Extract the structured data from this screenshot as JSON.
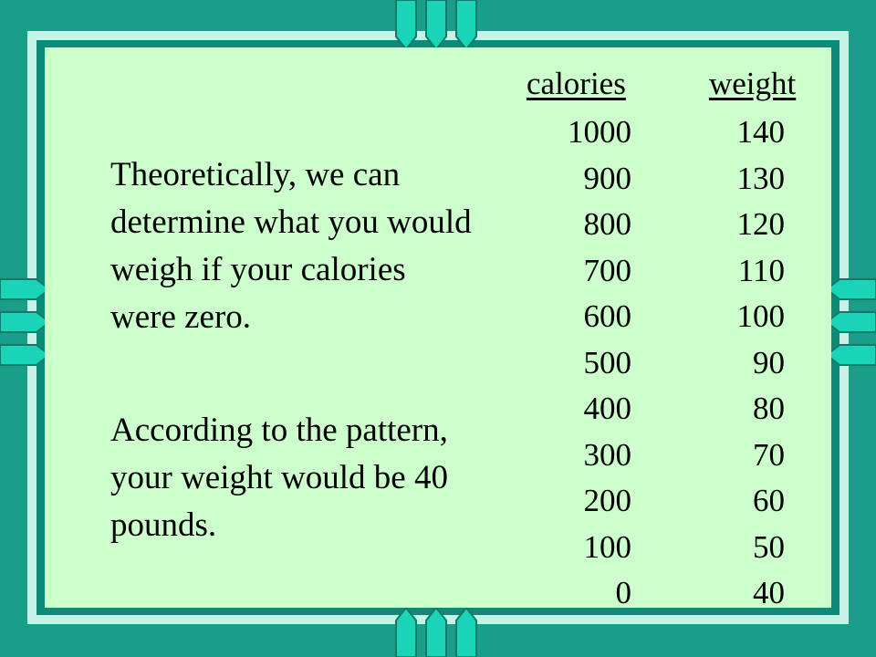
{
  "text": {
    "paragraph_1": "Theoretically, we can determine what you would weigh if your calories were zero.",
    "paragraph_2": "According to the pattern, your weight would be 40 pounds."
  },
  "table": {
    "headers": [
      "calories",
      "weight"
    ],
    "calories": [
      "1000",
      "900",
      "800",
      "700",
      "600",
      "500",
      "400",
      "300",
      "200",
      "100",
      "0"
    ],
    "weight": [
      "140",
      "130",
      "120",
      "110",
      "100",
      "90",
      "80",
      "70",
      "60",
      "50",
      "40"
    ]
  },
  "colors": {
    "background": "#1a9e8a",
    "frame_light": "#c8f2e6",
    "frame_dark": "#0e8a78",
    "panel": "#ccffcc",
    "deco_teal": "#1ad4b8"
  }
}
